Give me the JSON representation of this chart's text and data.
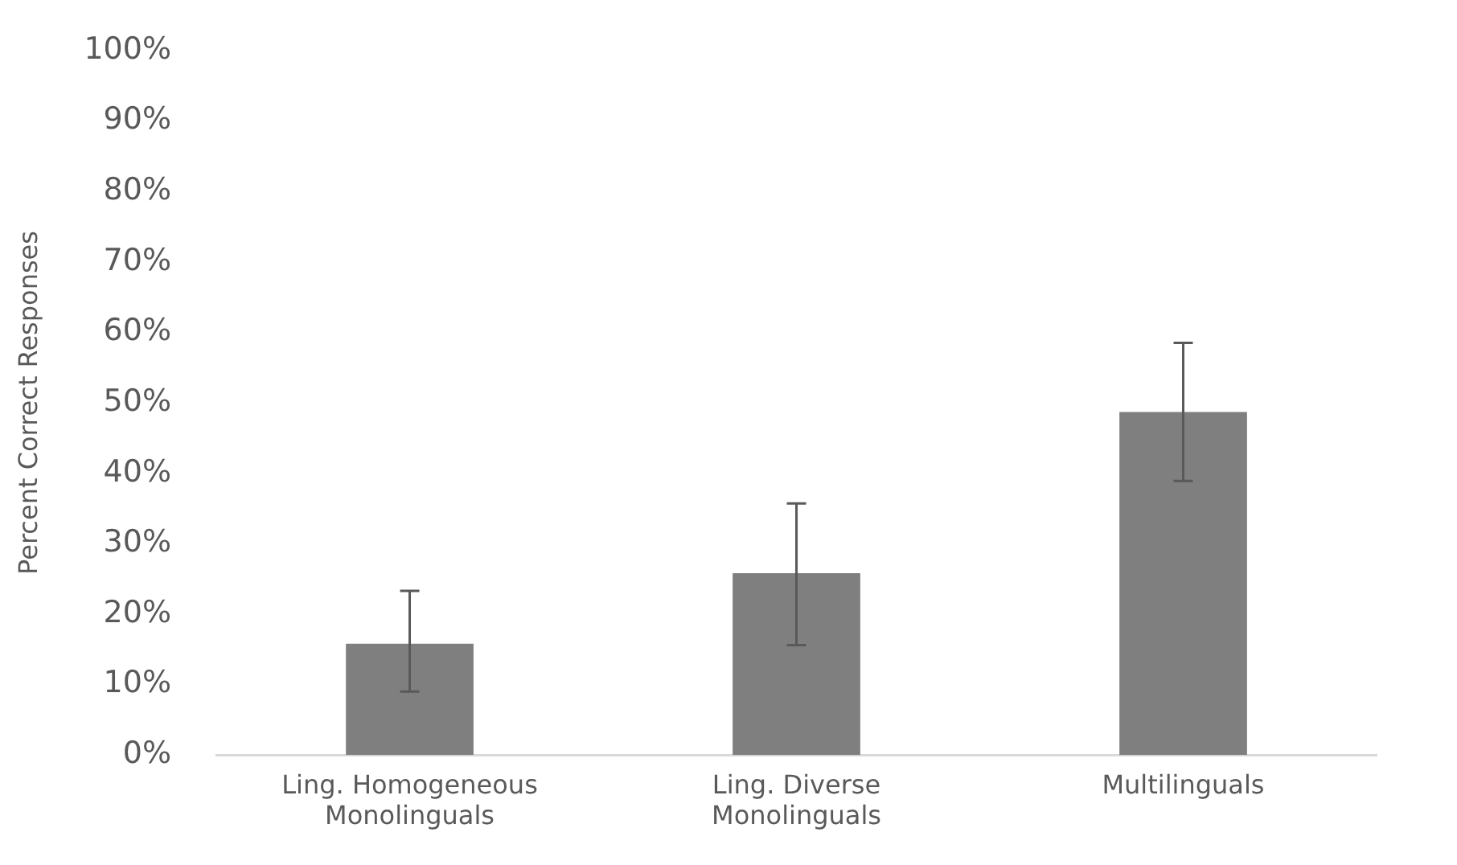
{
  "chart_data": {
    "type": "bar",
    "ylabel": "Percent Correct Responses",
    "categories": [
      "Ling. Homogeneous Monolinguals",
      "Ling. Diverse Monolinguals",
      "Multilinguals"
    ],
    "values": [
      15.8,
      25.8,
      48.7
    ],
    "errors": [
      [
        9.0,
        23.3
      ],
      [
        15.6,
        35.7
      ],
      [
        38.9,
        58.5
      ]
    ],
    "color": "#7f7f7f",
    "ylim": [
      0,
      100
    ],
    "yticks": [
      {
        "value": 0,
        "label": "0%"
      },
      {
        "value": 10,
        "label": "10%"
      },
      {
        "value": 20,
        "label": "20%"
      },
      {
        "value": 30,
        "label": "30%"
      },
      {
        "value": 40,
        "label": "40%"
      },
      {
        "value": 50,
        "label": "50%"
      },
      {
        "value": 60,
        "label": "60%"
      },
      {
        "value": 70,
        "label": "70%"
      },
      {
        "value": 80,
        "label": "80%"
      },
      {
        "value": 90,
        "label": "90%"
      },
      {
        "value": 100,
        "label": "100%"
      }
    ],
    "grid": false,
    "legend": false
  }
}
